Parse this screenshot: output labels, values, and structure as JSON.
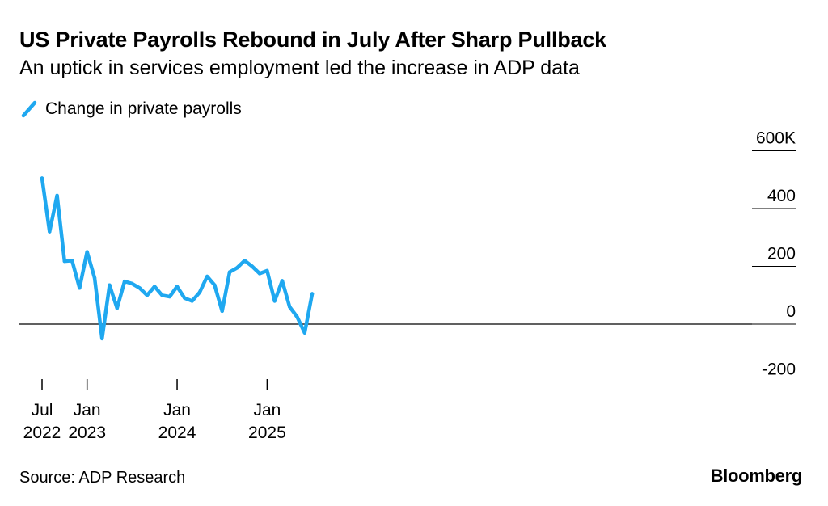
{
  "header": {
    "title": "US Private Payrolls Rebound in July After Sharp Pullback",
    "subtitle": "An uptick in services employment led the increase in ADP data"
  },
  "legend": {
    "label": "Change in private payrolls"
  },
  "footer": {
    "source": "Source: ADP Research",
    "brand": "Bloomberg"
  },
  "colors": {
    "series": "#1fa8f0",
    "axis": "#000000"
  },
  "chart_data": {
    "type": "line",
    "title": "US Private Payrolls Rebound in July After Sharp Pullback",
    "subtitle": "An uptick in services employment led the increase in ADP data",
    "xlabel": "",
    "ylabel": "",
    "ylim": [
      -200,
      600
    ],
    "yaxis_position": "right",
    "grid": false,
    "legend_position": "top-left",
    "y_ticks": [
      {
        "value": 600,
        "label": "600K"
      },
      {
        "value": 400,
        "label": "400"
      },
      {
        "value": 200,
        "label": "200"
      },
      {
        "value": 0,
        "label": "0"
      },
      {
        "value": -200,
        "label": "-200"
      }
    ],
    "x_ticks": [
      {
        "date": "2022-07",
        "line1": "Jul",
        "line2": "2022"
      },
      {
        "date": "2023-01",
        "line1": "Jan",
        "line2": "2023"
      },
      {
        "date": "2024-01",
        "line1": "Jan",
        "line2": "2024"
      },
      {
        "date": "2025-01",
        "line1": "Jan",
        "line2": "2025"
      }
    ],
    "series": [
      {
        "name": "Change in private payrolls",
        "x": [
          "2022-07",
          "2022-08",
          "2022-09",
          "2022-10",
          "2022-11",
          "2022-12",
          "2023-01",
          "2023-02",
          "2023-03",
          "2023-04",
          "2023-05",
          "2023-06",
          "2023-07",
          "2023-08",
          "2023-09",
          "2023-10",
          "2023-11",
          "2023-12",
          "2024-01",
          "2024-02",
          "2024-03",
          "2024-04",
          "2024-05",
          "2024-06",
          "2024-07",
          "2024-08",
          "2024-09",
          "2024-10",
          "2024-11",
          "2024-12",
          "2025-01",
          "2025-02",
          "2025-03",
          "2025-04",
          "2025-05",
          "2025-06",
          "2025-07"
        ],
        "values": [
          505,
          320,
          445,
          218,
          220,
          125,
          250,
          160,
          -50,
          135,
          55,
          148,
          140,
          125,
          100,
          130,
          100,
          95,
          130,
          90,
          80,
          110,
          165,
          135,
          45,
          180,
          195,
          220,
          200,
          175,
          185,
          80,
          150,
          60,
          25,
          -30,
          105
        ]
      }
    ]
  }
}
